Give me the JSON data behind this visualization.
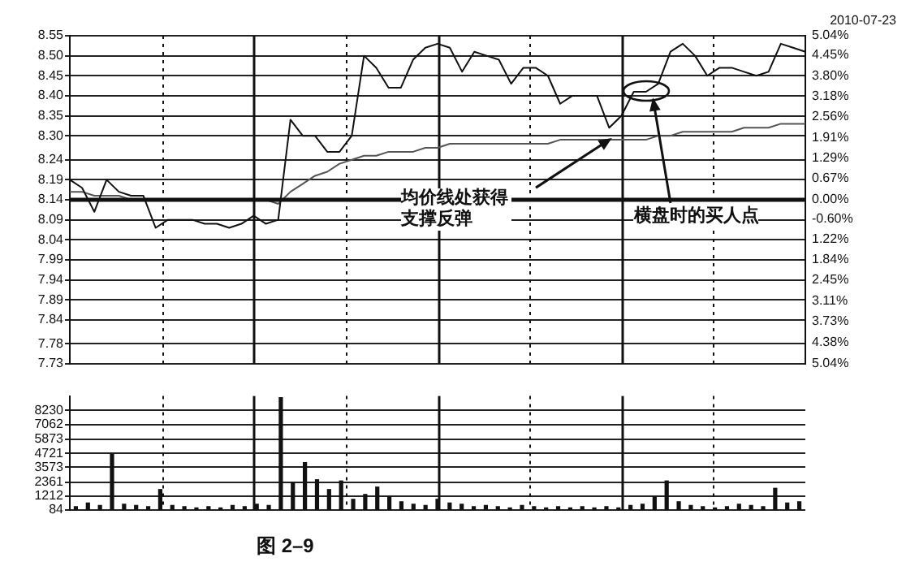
{
  "chart_data": [
    {
      "type": "line",
      "categories": [
        null,
        null,
        null,
        null,
        null,
        null,
        null,
        null,
        null,
        null,
        null,
        null,
        null,
        null,
        null,
        null,
        null,
        null,
        null,
        null,
        null,
        null,
        null,
        null,
        null,
        null,
        null,
        null,
        null,
        null,
        null,
        null,
        null,
        null,
        null,
        null,
        null,
        null,
        null,
        null,
        null,
        null,
        null,
        null,
        null,
        null,
        null,
        null,
        null,
        null,
        null,
        null,
        null,
        null,
        null,
        null,
        null,
        null,
        null,
        null,
        null
      ],
      "series": [
        {
          "color": "#111111",
          "values": [
            8.19,
            8.17,
            8.11,
            8.19,
            8.16,
            8.15,
            8.15,
            8.07,
            8.09,
            8.09,
            8.09,
            8.08,
            8.08,
            8.07,
            8.08,
            8.1,
            8.08,
            8.09,
            8.34,
            8.3,
            8.3,
            8.26,
            8.26,
            8.3,
            8.5,
            8.47,
            8.42,
            8.42,
            8.49,
            8.52,
            8.53,
            8.52,
            8.46,
            8.51,
            8.5,
            8.49,
            8.43,
            8.47,
            8.47,
            8.45,
            8.38,
            8.4,
            8.4,
            8.4,
            8.32,
            8.35,
            8.41,
            8.41,
            8.43,
            8.51,
            8.53,
            8.5,
            8.45,
            8.47,
            8.47,
            8.46,
            8.45,
            8.46,
            8.53,
            8.52,
            8.51
          ]
        },
        {
          "color": "#555555",
          "values": [
            8.16,
            8.16,
            8.15,
            8.15,
            8.15,
            8.14,
            8.14,
            8.14,
            8.14,
            8.14,
            8.14,
            8.14,
            8.14,
            8.14,
            8.14,
            8.14,
            8.14,
            8.13,
            8.16,
            8.18,
            8.2,
            8.21,
            8.23,
            8.24,
            8.25,
            8.25,
            8.26,
            8.26,
            8.26,
            8.27,
            8.27,
            8.28,
            8.28,
            8.28,
            8.28,
            8.28,
            8.28,
            8.28,
            8.28,
            8.28,
            8.29,
            8.29,
            8.29,
            8.29,
            8.29,
            8.29,
            8.29,
            8.29,
            8.3,
            8.3,
            8.31,
            8.31,
            8.31,
            8.31,
            8.31,
            8.32,
            8.32,
            8.32,
            8.33,
            8.33,
            8.33
          ]
        }
      ],
      "ylim": [
        7.73,
        8.55
      ],
      "yticks": [
        8.55,
        {
          "value": 8.5,
          "label": "8.50"
        },
        8.45,
        {
          "value": 8.4,
          "label": "8.40"
        },
        8.35,
        {
          "value": 8.3,
          "label": "8.30"
        },
        8.24,
        8.19,
        8.14,
        8.09,
        8.04,
        7.99,
        7.94,
        7.89,
        7.84,
        7.78,
        7.73
      ],
      "y2lim": [
        -5.04,
        5.04
      ],
      "y2ticks": [
        {
          "value": 5.04,
          "label": "5.04%"
        },
        {
          "value": 4.45,
          "label": "4.45%"
        },
        {
          "value": 3.8,
          "label": "3.80%"
        },
        {
          "value": 3.18,
          "label": "3.18%"
        },
        {
          "value": 2.56,
          "label": "2.56%"
        },
        {
          "value": 1.91,
          "label": "1.91%"
        },
        {
          "value": 1.29,
          "label": "1.29%"
        },
        {
          "value": 0.67,
          "label": "0.67%"
        },
        {
          "value": 0,
          "label": "0.00%"
        },
        {
          "value": -0.6,
          "label": "-0.60%"
        },
        {
          "value": -1.22,
          "label": "1.22%"
        },
        {
          "value": -1.84,
          "label": "1.84%"
        },
        {
          "value": -2.45,
          "label": "2.45%"
        },
        {
          "value": -3.11,
          "label": "3.11%"
        },
        {
          "value": -3.73,
          "label": "3.73%"
        },
        {
          "value": -4.38,
          "label": "4.38%"
        },
        {
          "value": -5.04,
          "label": "5.04%"
        }
      ],
      "ref_lines": [
        {
          "axis": "y",
          "value": 8.14,
          "color": "#111111"
        }
      ],
      "grid": true,
      "legend": false,
      "marker": "none",
      "line_style": "solid",
      "annotations": [
        "2010-07-23",
        "均价线处获得支撑反弹",
        "横盘时的买人点"
      ]
    },
    {
      "type": "bar",
      "categories": [
        null,
        null,
        null,
        null,
        null,
        null,
        null,
        null,
        null,
        null,
        null,
        null,
        null,
        null,
        null,
        null,
        null,
        null,
        null,
        null,
        null,
        null,
        null,
        null,
        null,
        null,
        null,
        null,
        null,
        null,
        null,
        null,
        null,
        null,
        null,
        null,
        null,
        null,
        null,
        null,
        null,
        null,
        null,
        null,
        null,
        null,
        null,
        null,
        null,
        null,
        null,
        null,
        null,
        null,
        null,
        null,
        null,
        null,
        null,
        null,
        null
      ],
      "values": [
        400,
        700,
        500,
        4700,
        600,
        500,
        400,
        1800,
        500,
        400,
        300,
        400,
        300,
        500,
        400,
        600,
        500,
        9300,
        2400,
        4000,
        2600,
        1800,
        2500,
        1000,
        1400,
        2000,
        1200,
        800,
        600,
        500,
        1000,
        700,
        600,
        400,
        500,
        400,
        300,
        500,
        400,
        300,
        400,
        300,
        400,
        300,
        400,
        300,
        500,
        600,
        1200,
        2500,
        800,
        500,
        400,
        300,
        400,
        600,
        500,
        400,
        1900,
        700,
        800
      ],
      "color": "#111111",
      "ylim": [
        84,
        9400
      ],
      "yticks": [
        84,
        1212,
        2361,
        3573,
        4721,
        5873,
        7062,
        8230
      ],
      "grid": true,
      "legend": false,
      "annotations": [
        "图 2–9"
      ]
    }
  ]
}
